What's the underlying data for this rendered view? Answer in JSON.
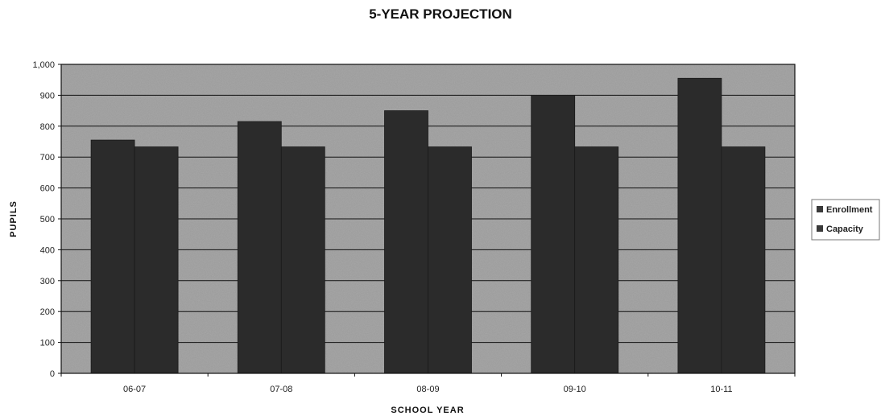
{
  "chart_data": {
    "type": "bar",
    "title": "5-YEAR PROJECTION",
    "xlabel": "SCHOOL YEAR",
    "ylabel": "PUPILS",
    "categories": [
      "06-07",
      "07-08",
      "08-09",
      "09-10",
      "10-11"
    ],
    "series": [
      {
        "name": "Enrollment",
        "values": [
          755,
          815,
          850,
          900,
          955
        ]
      },
      {
        "name": "Capacity",
        "values": [
          733,
          733,
          733,
          733,
          733
        ]
      }
    ],
    "ylim": [
      0,
      1000
    ],
    "yticks": [
      "0",
      "100",
      "200",
      "300",
      "400",
      "500",
      "600",
      "700",
      "800",
      "900",
      "1,000"
    ],
    "grid": true,
    "legend": "right",
    "colors": {
      "plot_background": "#9a9a9a",
      "bar": "#2b2b2b",
      "gridline": "#111111",
      "legend_swatch": "#3a3a3a"
    }
  }
}
